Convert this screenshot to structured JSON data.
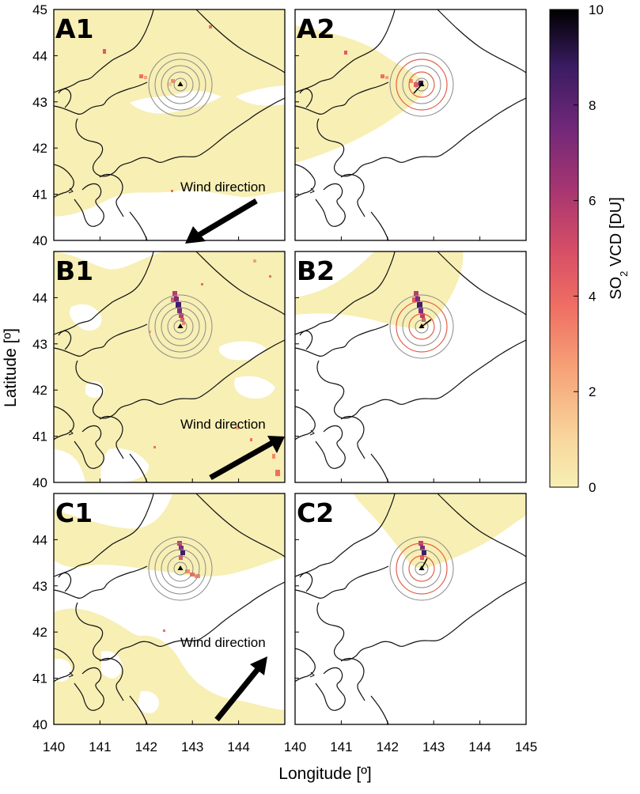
{
  "figure": {
    "xlabel": "Longitude [º]",
    "ylabel": "Latitude [º]",
    "x_ticks": [
      "140",
      "141",
      "142",
      "143",
      "144",
      "145"
    ],
    "y_ticks": [
      "40",
      "41",
      "42",
      "43",
      "44",
      "45"
    ],
    "wind_label": "Wind direction",
    "volcano_icon": "triangle-marker"
  },
  "colorbar": {
    "title_prefix": "SO",
    "title_sub": "2",
    "title_suffix": " VCD [DU]",
    "ticks": [
      "0",
      "2",
      "4",
      "6",
      "8",
      "10"
    ],
    "min": 0,
    "max": 10,
    "colors": [
      "#f7efb4",
      "#f8c98f",
      "#f58a66",
      "#e15962",
      "#b83d6e",
      "#7e2b7a",
      "#3f1d6b",
      "#000000"
    ]
  },
  "panels": [
    {
      "id": "A1",
      "label": "A1",
      "wind_arrow": "toward-southwest"
    },
    {
      "id": "A2",
      "label": "A2",
      "wind_arrow": ""
    },
    {
      "id": "B1",
      "label": "B1",
      "wind_arrow": "toward-northeast"
    },
    {
      "id": "B2",
      "label": "B2",
      "wind_arrow": ""
    },
    {
      "id": "C1",
      "label": "C1",
      "wind_arrow": "toward-northeast"
    },
    {
      "id": "C2",
      "label": "C2",
      "wind_arrow": ""
    }
  ]
}
